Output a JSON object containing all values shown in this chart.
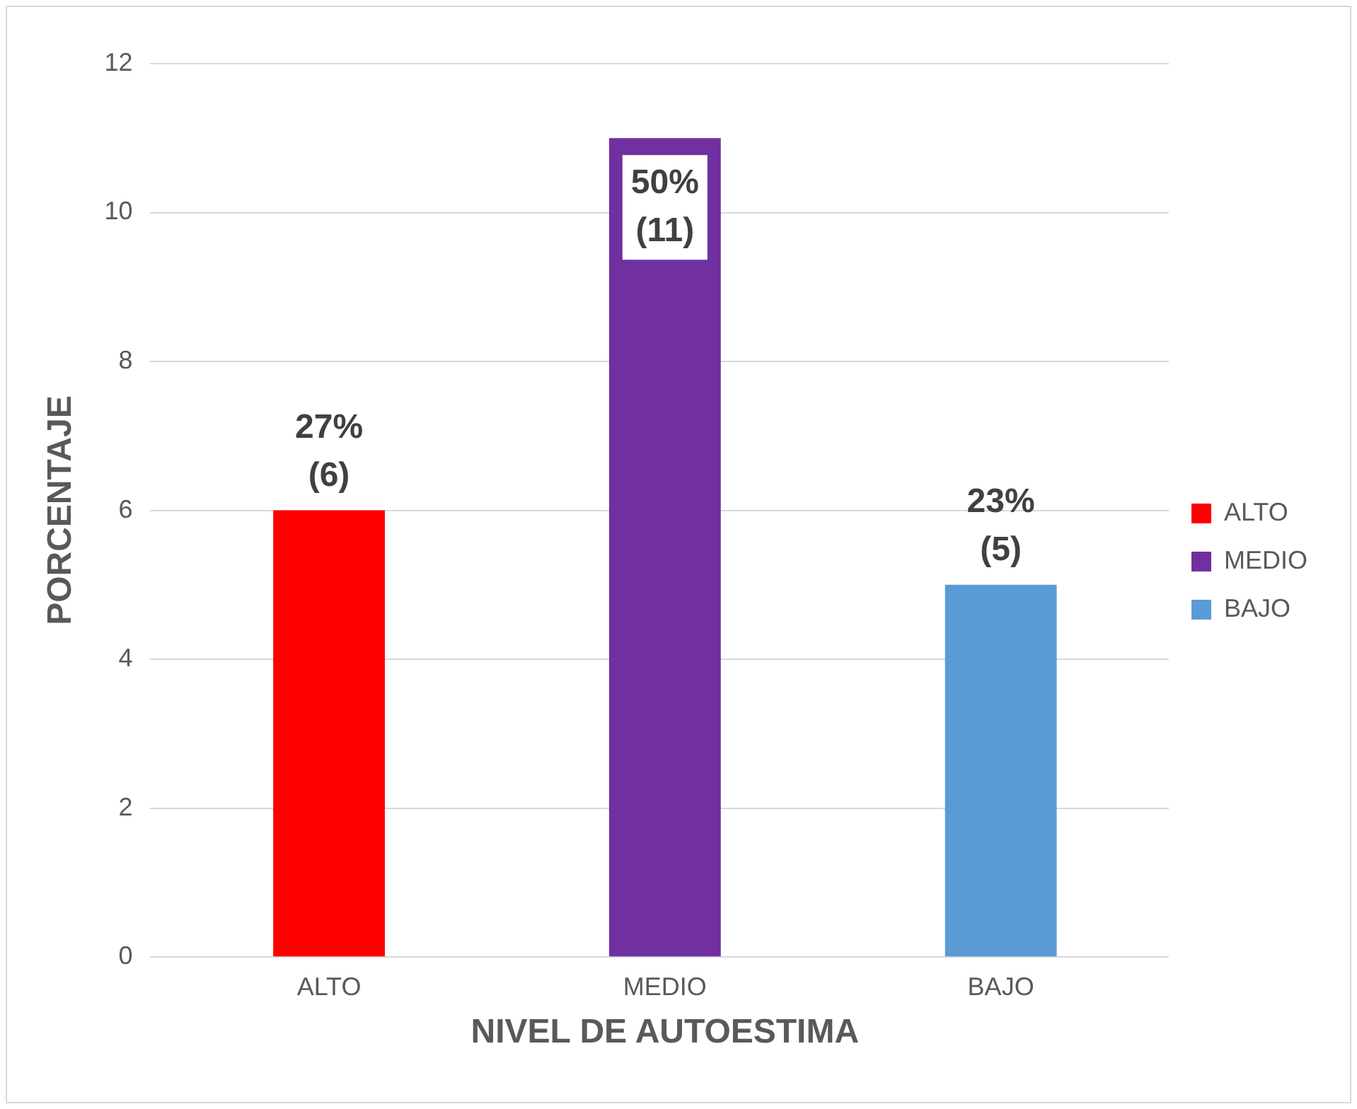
{
  "chart_data": {
    "type": "bar",
    "xlabel": "NIVEL DE AUTOESTIMA",
    "ylabel": "PORCENTAJE",
    "categories": [
      "ALTO",
      "MEDIO",
      "BAJO"
    ],
    "series": [
      {
        "name": "ALTO",
        "color": "#ff0000",
        "values": [
          6,
          null,
          null
        ],
        "value_labels": [
          "27% (6)",
          null,
          null
        ]
      },
      {
        "name": "MEDIO",
        "color": "#7030a0",
        "values": [
          null,
          11,
          null
        ],
        "value_labels": [
          null,
          "50% (11)",
          null
        ]
      },
      {
        "name": "BAJO",
        "color": "#5b9bd5",
        "values": [
          null,
          null,
          5
        ],
        "value_labels": [
          null,
          null,
          "23% (5)"
        ]
      }
    ],
    "ylim": [
      0,
      12
    ],
    "yticks": [
      0,
      2,
      4,
      6,
      8,
      10,
      12
    ],
    "grid": "y",
    "legend": "right"
  }
}
